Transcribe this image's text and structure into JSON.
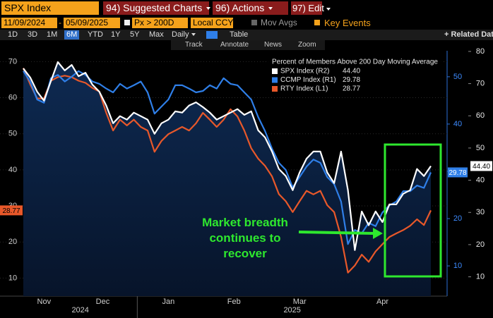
{
  "toolbar": {
    "security": "SPX Index",
    "menus": [
      "94) Suggested Charts",
      "96) Actions",
      "97) Edit"
    ],
    "start_date": "11/09/2024",
    "date_separator": "-",
    "end_date": "05/09/2025",
    "field": "Px > 200D",
    "currency": "Local CCY",
    "moving_averages": "Mov Avgs",
    "key_events": "Key Events",
    "periods": [
      "1D",
      "3D",
      "1M",
      "6M",
      "YTD",
      "1Y",
      "5Y",
      "Max"
    ],
    "selected_period": 3,
    "frequency": "Daily",
    "view": "Table",
    "related": "Related Dat",
    "tools": [
      "Track",
      "Annotate",
      "News",
      "Zoom"
    ]
  },
  "chart_data": {
    "type": "line",
    "title": "Percent of Members Above 200 Day Moving Average",
    "categories": [
      "Nov",
      null,
      null,
      null,
      null,
      null,
      null,
      "Dec",
      null,
      null,
      null,
      null,
      null,
      null,
      null,
      null,
      null,
      "Jan",
      null,
      null,
      null,
      null,
      null,
      null,
      null,
      null,
      "Feb",
      null,
      null,
      null,
      null,
      null,
      null,
      null,
      null,
      null,
      "Mar",
      null,
      null,
      null,
      null,
      null,
      null,
      null,
      null,
      "Apr",
      null,
      null,
      null,
      null,
      null,
      null,
      null,
      null,
      null,
      null,
      null,
      null,
      null,
      null
    ],
    "years": [
      {
        "label": "2024",
        "from": 0
      },
      {
        "label": "2025",
        "from": 17
      }
    ],
    "ylim": [
      5,
      73
    ],
    "yticks": [
      10,
      20,
      30,
      40,
      50,
      60,
      70
    ],
    "y2lim": [
      3.6,
      55.5
    ],
    "y2ticks": [
      10,
      20,
      30,
      40,
      50
    ],
    "y3lim": [
      4,
      80.2
    ],
    "y3ticks": [
      10,
      20,
      30,
      40,
      50,
      60,
      70,
      80
    ],
    "grid": true,
    "series": [
      {
        "name": "SPX Index (R2)",
        "color": "#ffffff",
        "axis": "y3",
        "area": true,
        "last_label": "44.40",
        "values": [
          74.7,
          71.9,
          67.5,
          64.7,
          70.8,
          76.7,
          74.1,
          75.8,
          72.3,
          73.4,
          69.7,
          67.5,
          63.2,
          57.7,
          59.9,
          58.8,
          61,
          59.9,
          58.8,
          54.4,
          57.7,
          58.8,
          61.4,
          61,
          63.2,
          64.2,
          62.7,
          61,
          58.8,
          59.9,
          61,
          62.1,
          60.3,
          61.4,
          55.5,
          53.3,
          48.9,
          43.5,
          41.3,
          36.9,
          42.4,
          46.7,
          48.9,
          48.9,
          42.4,
          39.1,
          48.9,
          36.9,
          18.3,
          30.3,
          26,
          30.3,
          27,
          32.5,
          32.5,
          35.8,
          36.9,
          43.5,
          41.3,
          44.4
        ]
      },
      {
        "name": "CCMP Index (R1)",
        "color": "#2f7fe8",
        "axis": "y2",
        "last_label": "29.78",
        "values": [
          51.2,
          49,
          45.2,
          44.5,
          49.7,
          50.4,
          49,
          50,
          51.2,
          50.4,
          49,
          48.5,
          47.5,
          46.7,
          48.5,
          47.5,
          48.2,
          49,
          46.7,
          42.2,
          43.7,
          45.2,
          48.2,
          48.2,
          47.5,
          46.7,
          47,
          48.2,
          47.5,
          49.7,
          48.5,
          48.2,
          46.7,
          45.2,
          41.5,
          38.5,
          34.8,
          31.8,
          30.3,
          26.6,
          28.8,
          31,
          32.5,
          31.8,
          28.8,
          27.3,
          23.6,
          14.6,
          17.6,
          16.9,
          19.1,
          18.4,
          21.3,
          22.8,
          23.6,
          25.8,
          25.8,
          27,
          26.5,
          29.78
        ]
      },
      {
        "name": "RTY Index (L1)",
        "color": "#e8582a",
        "axis": "y",
        "last_label": "28.77",
        "values": [
          68.2,
          63.7,
          59.8,
          59.8,
          64.7,
          65.7,
          66.1,
          65.7,
          64.7,
          64.1,
          62.7,
          61.7,
          55.8,
          50.9,
          53.9,
          52.3,
          53.9,
          51.9,
          50.9,
          45,
          48,
          49.9,
          50.9,
          51.9,
          50.9,
          52.9,
          55.8,
          53.9,
          51.9,
          53.9,
          56.8,
          54.8,
          50.9,
          46,
          43.1,
          41.1,
          38.2,
          33.3,
          31.3,
          28.3,
          31.3,
          34.2,
          33.2,
          34.2,
          30.2,
          28.3,
          21.4,
          11.5,
          13.5,
          16.5,
          14.5,
          17.4,
          19.4,
          21.4,
          22.4,
          23.3,
          24.5,
          26.3,
          24.7,
          28.77
        ]
      }
    ],
    "annotation": {
      "text": "Market breadth continues to recover",
      "color": "#2ee82e"
    }
  }
}
